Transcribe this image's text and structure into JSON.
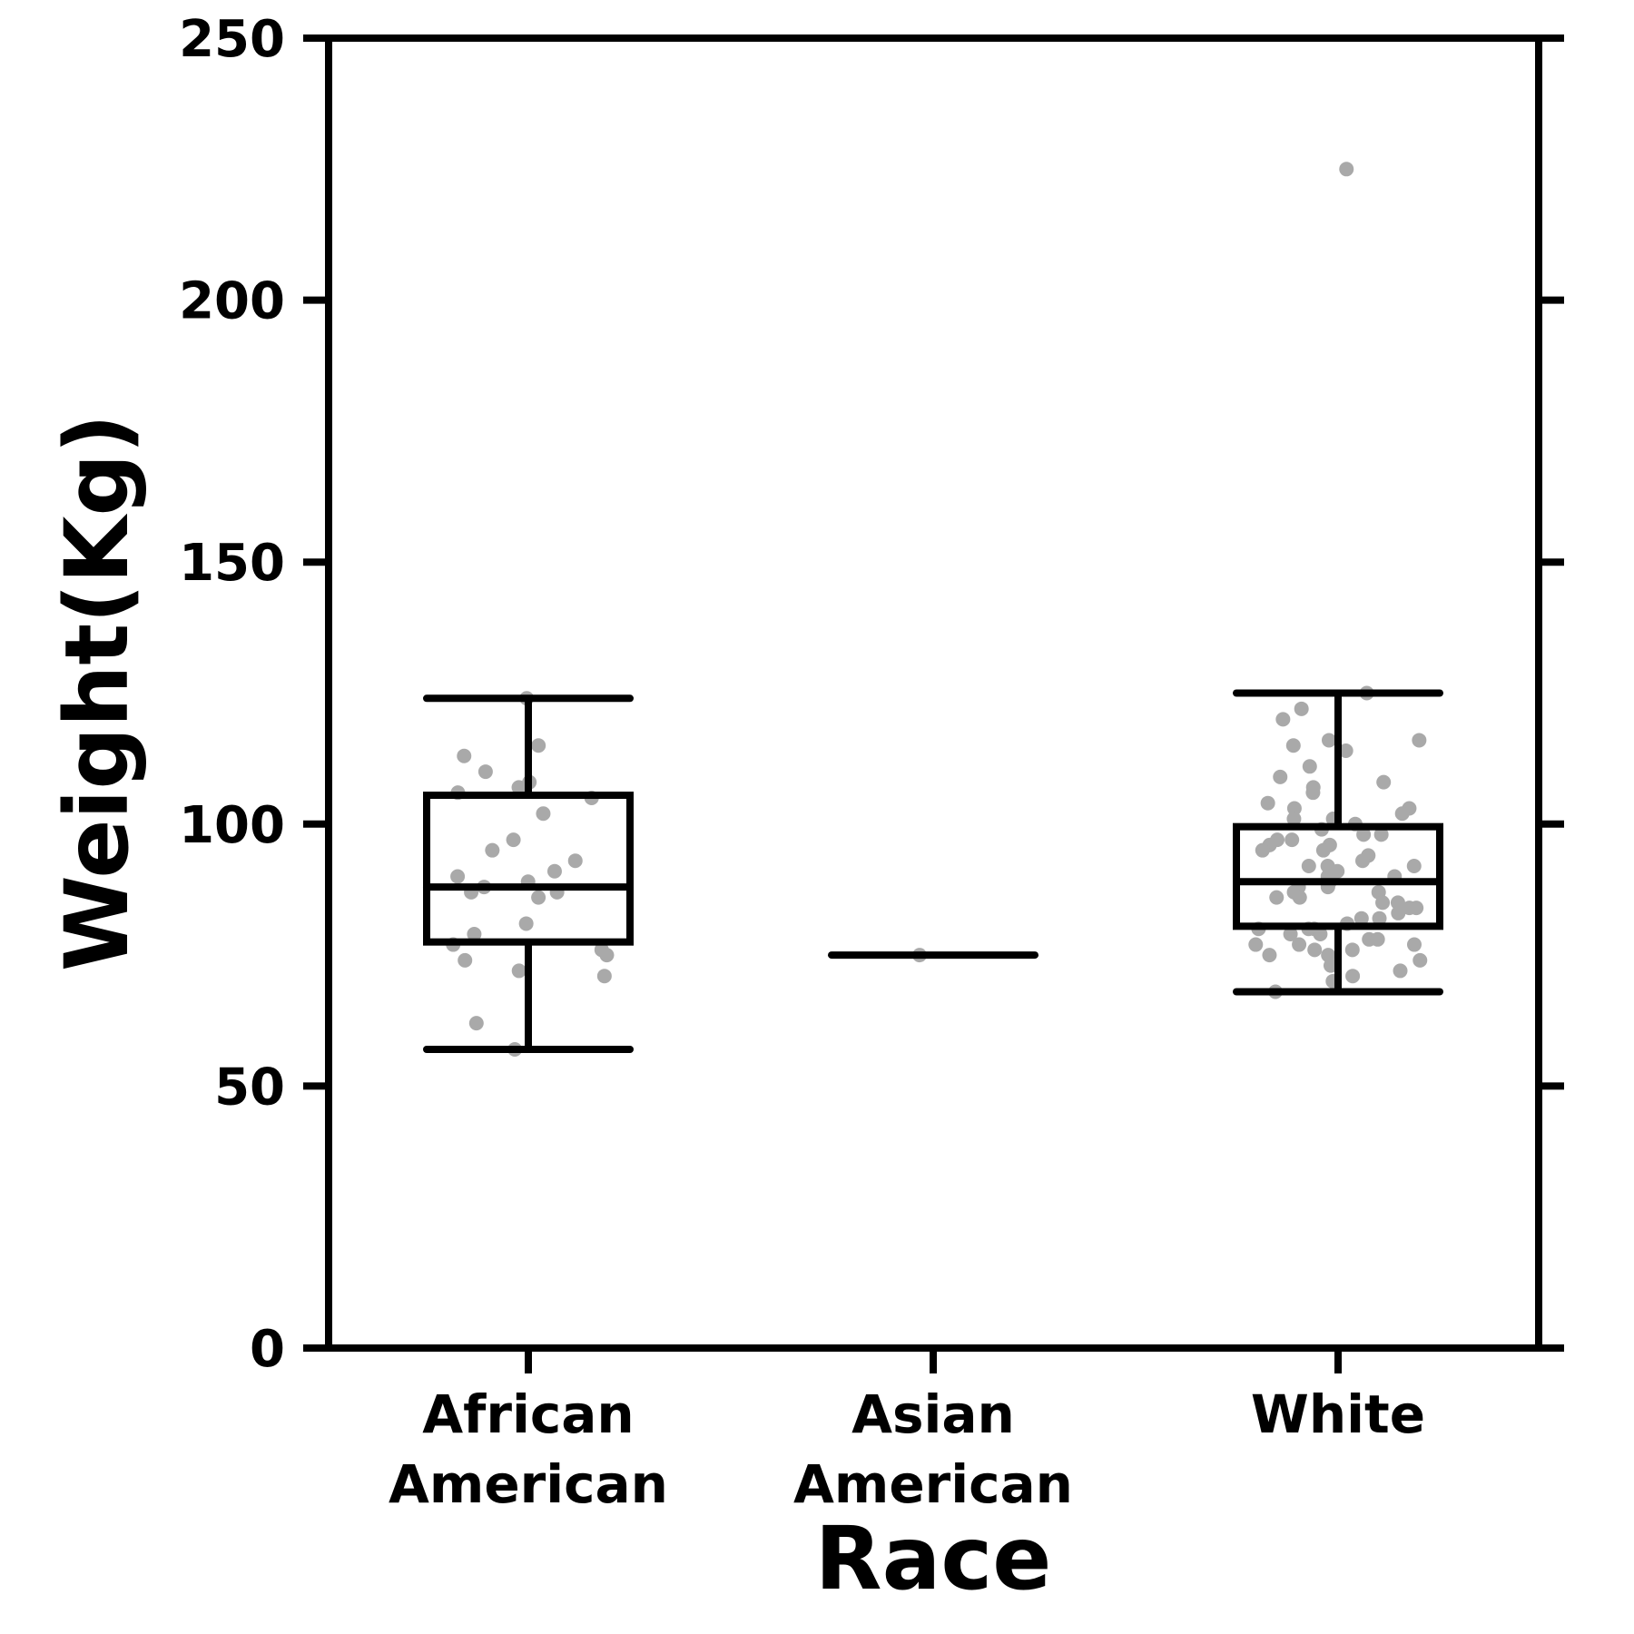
{
  "chart_data": {
    "type": "box",
    "xlabel": "Race",
    "ylabel": "Weight(Kg)",
    "ylim": [
      0,
      250
    ],
    "yticks": [
      "0",
      "50",
      "100",
      "150",
      "200",
      "250"
    ],
    "categories": [
      [
        "African",
        "American"
      ],
      [
        "Asian",
        "American"
      ],
      [
        "White"
      ]
    ],
    "boxes": [
      {
        "category": "African American",
        "whisker_low": 57,
        "q1": 77.5,
        "median": 88,
        "q3": 105.5,
        "whisker_high": 124,
        "points": [
          124,
          115,
          113,
          110,
          107,
          108,
          106,
          105,
          102,
          97,
          95,
          93,
          91,
          90,
          89,
          88,
          87,
          87,
          86,
          81,
          79,
          77,
          76,
          75,
          74,
          72,
          71,
          62,
          57
        ]
      },
      {
        "category": "Asian American",
        "whisker_low": 75,
        "q1": 75,
        "median": 75,
        "q3": 75,
        "whisker_high": 75,
        "points": [
          75
        ]
      },
      {
        "category": "White",
        "whisker_low": 68,
        "q1": 80.5,
        "median": 89,
        "q3": 99.5,
        "whisker_high": 125,
        "points": [
          225,
          125,
          122,
          120,
          116,
          116,
          115,
          114,
          111,
          109,
          108,
          107,
          106,
          104,
          103,
          103,
          102,
          101,
          101,
          100,
          99,
          98,
          98,
          97,
          97,
          96,
          96,
          95,
          95,
          94,
          93,
          92,
          92,
          92,
          91,
          90,
          90,
          89,
          88,
          88,
          87,
          87,
          86,
          86,
          85,
          85,
          84,
          84,
          83,
          82,
          82,
          81,
          80,
          80,
          80,
          79,
          79,
          78,
          78,
          77,
          77,
          77,
          76,
          76,
          75,
          75,
          74,
          73,
          72,
          71,
          70,
          68
        ]
      }
    ],
    "colors": {
      "box": "#000000",
      "points": "#a9a9a9"
    },
    "grid": false,
    "legend": "none"
  }
}
